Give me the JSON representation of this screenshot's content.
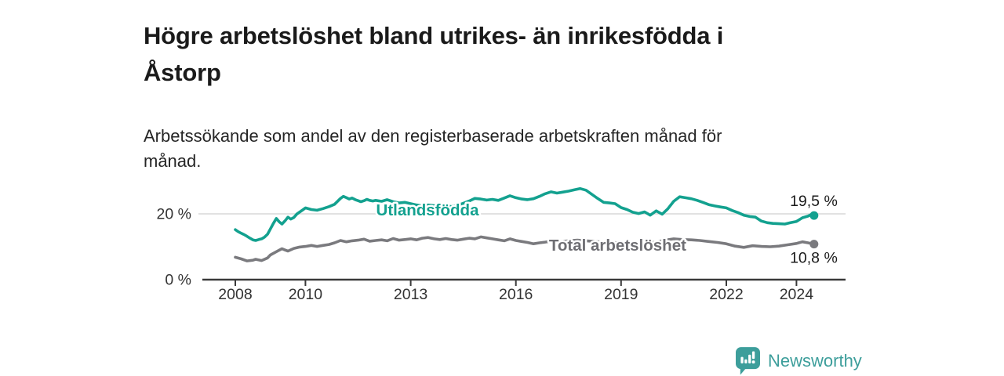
{
  "header": {
    "title": "Högre arbetslöshet bland utrikes- än inrikesfödda i\nÅstorp",
    "subtitle": "Arbetssökande som andel av den registerbaserade arbetskraften månad för\nmånad."
  },
  "footer": {
    "brand": "Newsworthy",
    "logo_icon": "newsworthy-speech-bubble-bar-chart-icon"
  },
  "colors": {
    "teal_line": "#13a18f",
    "gray_line": "#7a7a7e",
    "gray_label": "#6e6e73",
    "gridline": "#d9d9d9",
    "axis": "#3a3a3a",
    "axis_text": "#333333",
    "value_label": "#1a1a1a",
    "title_text": "#1a1a1a",
    "brand_teal": "#3d9e9b"
  },
  "chart_data": {
    "type": "line",
    "title": "Högre arbetslöshet bland utrikes- än inrikesfödda i Åstorp",
    "subtitle": "Arbetssökande som andel av den registerbaserade arbetskraften månad för månad.",
    "xlabel": "",
    "ylabel": "",
    "legend_position": "inline-labels",
    "grid": "horizontal-20-only",
    "x_axis": {
      "range": [
        2007.15,
        2025.4
      ],
      "ticks": [
        2008,
        2010,
        2013,
        2016,
        2019,
        2022,
        2024
      ]
    },
    "y_axis": {
      "range": [
        0,
        29
      ],
      "ticks": [
        {
          "value": 0,
          "label": "0 %"
        },
        {
          "value": 20,
          "label": "20 %"
        }
      ],
      "gridlines": [
        20
      ]
    },
    "series": [
      {
        "name": "Utlandsfödda",
        "color": "#13a18f",
        "label_color": "#13a18f",
        "label": {
          "x": 2013.48,
          "y": 21.2
        },
        "end_label": "19,5 %",
        "end_value": 19.5,
        "points": [
          [
            2008.0,
            15.2
          ],
          [
            2008.08,
            14.6
          ],
          [
            2008.17,
            14.1
          ],
          [
            2008.25,
            13.7
          ],
          [
            2008.33,
            13.2
          ],
          [
            2008.42,
            12.6
          ],
          [
            2008.5,
            12.1
          ],
          [
            2008.58,
            11.9
          ],
          [
            2008.67,
            12.2
          ],
          [
            2008.75,
            12.4
          ],
          [
            2008.83,
            12.9
          ],
          [
            2008.92,
            13.8
          ],
          [
            2009.0,
            15.4
          ],
          [
            2009.08,
            17.0
          ],
          [
            2009.17,
            18.6
          ],
          [
            2009.25,
            17.6
          ],
          [
            2009.33,
            16.9
          ],
          [
            2009.42,
            17.9
          ],
          [
            2009.5,
            19.0
          ],
          [
            2009.58,
            18.4
          ],
          [
            2009.67,
            18.9
          ],
          [
            2009.75,
            19.9
          ],
          [
            2009.83,
            20.5
          ],
          [
            2009.92,
            21.2
          ],
          [
            2010.0,
            21.8
          ],
          [
            2010.17,
            21.3
          ],
          [
            2010.33,
            21.1
          ],
          [
            2010.5,
            21.6
          ],
          [
            2010.67,
            22.2
          ],
          [
            2010.83,
            22.9
          ],
          [
            2011.0,
            24.7
          ],
          [
            2011.08,
            25.3
          ],
          [
            2011.17,
            24.9
          ],
          [
            2011.25,
            24.5
          ],
          [
            2011.33,
            24.8
          ],
          [
            2011.42,
            24.3
          ],
          [
            2011.5,
            24.0
          ],
          [
            2011.58,
            23.7
          ],
          [
            2011.67,
            24.0
          ],
          [
            2011.75,
            24.4
          ],
          [
            2011.83,
            24.1
          ],
          [
            2011.92,
            23.9
          ],
          [
            2012.0,
            24.1
          ],
          [
            2012.17,
            23.8
          ],
          [
            2012.33,
            24.3
          ],
          [
            2012.5,
            23.7
          ],
          [
            2012.67,
            23.3
          ],
          [
            2012.83,
            23.5
          ],
          [
            2013.0,
            23.1
          ],
          [
            2013.17,
            22.7
          ],
          [
            2013.33,
            22.4
          ],
          [
            2013.5,
            22.7
          ],
          [
            2013.67,
            22.5
          ],
          [
            2013.83,
            22.3
          ],
          [
            2014.0,
            22.5
          ],
          [
            2014.17,
            22.2
          ],
          [
            2014.33,
            22.6
          ],
          [
            2014.5,
            23.2
          ],
          [
            2014.67,
            23.9
          ],
          [
            2014.83,
            24.7
          ],
          [
            2015.0,
            24.5
          ],
          [
            2015.17,
            24.2
          ],
          [
            2015.33,
            24.4
          ],
          [
            2015.5,
            24.1
          ],
          [
            2015.67,
            24.8
          ],
          [
            2015.83,
            25.5
          ],
          [
            2016.0,
            24.9
          ],
          [
            2016.17,
            24.5
          ],
          [
            2016.33,
            24.3
          ],
          [
            2016.5,
            24.6
          ],
          [
            2016.67,
            25.3
          ],
          [
            2016.83,
            26.1
          ],
          [
            2017.0,
            26.7
          ],
          [
            2017.17,
            26.3
          ],
          [
            2017.33,
            26.6
          ],
          [
            2017.5,
            26.9
          ],
          [
            2017.67,
            27.3
          ],
          [
            2017.83,
            27.7
          ],
          [
            2018.0,
            27.2
          ],
          [
            2018.17,
            25.9
          ],
          [
            2018.33,
            24.7
          ],
          [
            2018.5,
            23.5
          ],
          [
            2018.67,
            23.3
          ],
          [
            2018.83,
            23.1
          ],
          [
            2019.0,
            21.9
          ],
          [
            2019.17,
            21.3
          ],
          [
            2019.33,
            20.5
          ],
          [
            2019.5,
            20.1
          ],
          [
            2019.67,
            20.6
          ],
          [
            2019.83,
            19.6
          ],
          [
            2020.0,
            20.9
          ],
          [
            2020.17,
            19.9
          ],
          [
            2020.33,
            21.5
          ],
          [
            2020.5,
            23.8
          ],
          [
            2020.67,
            25.2
          ],
          [
            2020.83,
            24.9
          ],
          [
            2021.0,
            24.6
          ],
          [
            2021.17,
            24.1
          ],
          [
            2021.33,
            23.5
          ],
          [
            2021.5,
            22.8
          ],
          [
            2021.67,
            22.4
          ],
          [
            2021.83,
            22.1
          ],
          [
            2022.0,
            21.8
          ],
          [
            2022.17,
            21.0
          ],
          [
            2022.33,
            20.4
          ],
          [
            2022.5,
            19.6
          ],
          [
            2022.67,
            19.2
          ],
          [
            2022.83,
            19.0
          ],
          [
            2023.0,
            17.8
          ],
          [
            2023.17,
            17.3
          ],
          [
            2023.33,
            17.1
          ],
          [
            2023.5,
            17.0
          ],
          [
            2023.67,
            16.9
          ],
          [
            2023.83,
            17.3
          ],
          [
            2024.0,
            17.7
          ],
          [
            2024.17,
            18.8
          ],
          [
            2024.33,
            19.3
          ],
          [
            2024.42,
            19.8
          ],
          [
            2024.5,
            19.5
          ]
        ]
      },
      {
        "name": "Total arbetslöshet",
        "color": "#7a7a7e",
        "label_color": "#6e6e73",
        "label": {
          "x": 2018.9,
          "y": 10.5
        },
        "end_label": "10,8 %",
        "end_value": 10.8,
        "points": [
          [
            2008.0,
            6.8
          ],
          [
            2008.17,
            6.3
          ],
          [
            2008.33,
            5.7
          ],
          [
            2008.5,
            5.9
          ],
          [
            2008.58,
            6.2
          ],
          [
            2008.75,
            5.8
          ],
          [
            2008.92,
            6.6
          ],
          [
            2009.0,
            7.5
          ],
          [
            2009.17,
            8.5
          ],
          [
            2009.33,
            9.4
          ],
          [
            2009.42,
            9.0
          ],
          [
            2009.5,
            8.7
          ],
          [
            2009.67,
            9.5
          ],
          [
            2009.83,
            9.9
          ],
          [
            2010.0,
            10.1
          ],
          [
            2010.17,
            10.4
          ],
          [
            2010.33,
            10.1
          ],
          [
            2010.5,
            10.4
          ],
          [
            2010.67,
            10.7
          ],
          [
            2010.83,
            11.2
          ],
          [
            2011.0,
            11.9
          ],
          [
            2011.17,
            11.5
          ],
          [
            2011.33,
            11.8
          ],
          [
            2011.5,
            12.0
          ],
          [
            2011.67,
            12.3
          ],
          [
            2011.83,
            11.7
          ],
          [
            2012.0,
            11.9
          ],
          [
            2012.17,
            12.1
          ],
          [
            2012.33,
            11.8
          ],
          [
            2012.5,
            12.5
          ],
          [
            2012.67,
            12.0
          ],
          [
            2012.83,
            12.2
          ],
          [
            2013.0,
            12.4
          ],
          [
            2013.17,
            12.1
          ],
          [
            2013.33,
            12.6
          ],
          [
            2013.5,
            12.8
          ],
          [
            2013.67,
            12.4
          ],
          [
            2013.83,
            12.2
          ],
          [
            2014.0,
            12.5
          ],
          [
            2014.17,
            12.2
          ],
          [
            2014.33,
            12.0
          ],
          [
            2014.5,
            12.3
          ],
          [
            2014.67,
            12.6
          ],
          [
            2014.83,
            12.4
          ],
          [
            2015.0,
            13.0
          ],
          [
            2015.17,
            12.7
          ],
          [
            2015.33,
            12.4
          ],
          [
            2015.5,
            12.1
          ],
          [
            2015.67,
            11.8
          ],
          [
            2015.83,
            12.4
          ],
          [
            2016.0,
            11.9
          ],
          [
            2016.17,
            11.6
          ],
          [
            2016.33,
            11.3
          ],
          [
            2016.5,
            10.9
          ],
          [
            2016.67,
            11.2
          ],
          [
            2016.83,
            11.4
          ],
          [
            2017.0,
            11.7
          ],
          [
            2017.25,
            11.5
          ],
          [
            2017.5,
            11.8
          ],
          [
            2017.75,
            12.0
          ],
          [
            2018.0,
            11.8
          ],
          [
            2018.25,
            11.6
          ],
          [
            2018.5,
            11.4
          ],
          [
            2018.75,
            11.3
          ],
          [
            2019.0,
            11.2
          ],
          [
            2019.25,
            11.0
          ],
          [
            2019.5,
            11.3
          ],
          [
            2019.75,
            11.1
          ],
          [
            2020.0,
            11.4
          ],
          [
            2020.25,
            12.0
          ],
          [
            2020.5,
            12.4
          ],
          [
            2020.75,
            12.2
          ],
          [
            2021.0,
            12.1
          ],
          [
            2021.25,
            11.9
          ],
          [
            2021.5,
            11.6
          ],
          [
            2021.75,
            11.3
          ],
          [
            2022.0,
            10.9
          ],
          [
            2022.25,
            10.2
          ],
          [
            2022.5,
            9.8
          ],
          [
            2022.75,
            10.3
          ],
          [
            2023.0,
            10.1
          ],
          [
            2023.25,
            10.0
          ],
          [
            2023.5,
            10.2
          ],
          [
            2023.75,
            10.6
          ],
          [
            2024.0,
            11.0
          ],
          [
            2024.17,
            11.5
          ],
          [
            2024.33,
            11.2
          ],
          [
            2024.5,
            10.8
          ]
        ]
      }
    ]
  }
}
